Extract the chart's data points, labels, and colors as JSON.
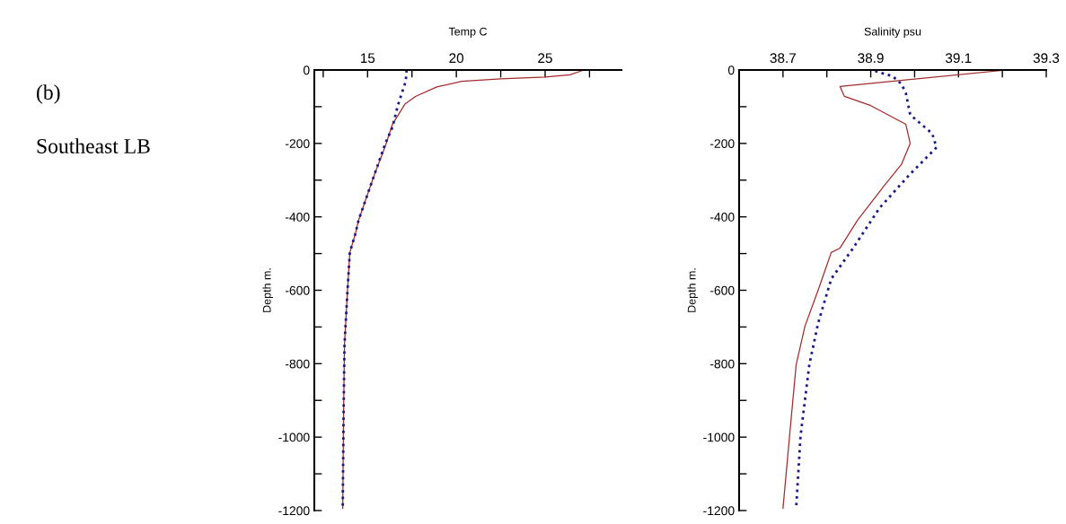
{
  "chart_data": [
    {
      "type": "line",
      "xlabel": "Temp C",
      "ylabel": "Depth m.",
      "annotations": [
        "(b)",
        "Southeast LB"
      ],
      "xlim": [
        12,
        29.3
      ],
      "ylim": [
        -1200,
        0
      ],
      "xticks": [
        {
          "value": 12.5,
          "label": null
        },
        15,
        {
          "value": 17.5,
          "label": null
        },
        20,
        {
          "value": 22.5,
          "label": null
        },
        25,
        {
          "value": 27.5,
          "label": null
        }
      ],
      "yticks": [
        0,
        {
          "value": -100,
          "label": null
        },
        -200,
        {
          "value": -300,
          "label": null
        },
        -400,
        {
          "value": -500,
          "label": null
        },
        -600,
        {
          "value": -700,
          "label": null
        },
        -800,
        {
          "value": -900,
          "label": null
        },
        -1000,
        {
          "value": -1100,
          "label": null
        },
        -1200
      ],
      "grid": false,
      "series": [
        {
          "color": "#a52a2a",
          "line_style": "solid",
          "x": [
            27.2,
            27.0,
            26.4,
            25.0,
            22.5,
            20.3,
            18.9,
            17.7,
            17.1,
            16.4,
            16.0,
            15.4,
            14.5,
            14.3,
            14.0,
            13.87,
            13.7,
            13.65,
            13.6
          ],
          "values": [
            0,
            -3,
            -13,
            -19,
            -24,
            -31,
            -46,
            -72,
            -93,
            -148,
            -207,
            -283,
            -408,
            -448,
            -497,
            -600,
            -747,
            -932,
            -1194
          ]
        },
        {
          "color": "#1a1a8a",
          "line_style": "dotted",
          "x": [
            17.2,
            17.15,
            16.7,
            16.4,
            16.0,
            15.4,
            14.5,
            14.3,
            14.0,
            13.87,
            13.7,
            13.65,
            13.6
          ],
          "values": [
            0,
            -30,
            -97,
            -156,
            -200,
            -283,
            -408,
            -448,
            -497,
            -600,
            -747,
            -932,
            -1194
          ]
        }
      ]
    },
    {
      "type": "line",
      "xlabel": "Salinity psu",
      "ylabel": "Depth m.",
      "xlim": [
        38.6,
        39.3
      ],
      "ylim": [
        -1200,
        0
      ],
      "xticks": [
        38.7,
        {
          "value": 38.8,
          "label": null
        },
        38.9,
        {
          "value": 39.0,
          "label": null
        },
        39.1,
        {
          "value": 39.2,
          "label": null
        },
        39.3
      ],
      "yticks": [
        0,
        {
          "value": -100,
          "label": null
        },
        -200,
        {
          "value": -300,
          "label": null
        },
        -400,
        {
          "value": -500,
          "label": null
        },
        -600,
        {
          "value": -700,
          "label": null
        },
        -800,
        {
          "value": -900,
          "label": null
        },
        -1000,
        {
          "value": -1100,
          "label": null
        },
        -1200
      ],
      "grid": false,
      "series": [
        {
          "color": "#a52a2a",
          "line_style": "solid",
          "x": [
            39.21,
            38.83,
            38.84,
            38.9,
            38.98,
            38.99,
            38.97,
            38.93,
            38.87,
            38.83,
            38.81,
            38.78,
            38.75,
            38.73,
            38.72,
            38.7
          ],
          "values": [
            0,
            -45,
            -72,
            -97,
            -148,
            -200,
            -257,
            -316,
            -409,
            -485,
            -497,
            -600,
            -698,
            -803,
            -932,
            -1194
          ]
        },
        {
          "color": "#1a1a8a",
          "line_style": "dotted",
          "x": [
            38.91,
            38.95,
            38.97,
            38.98,
            38.99,
            39.04,
            39.05,
            38.99,
            38.92,
            38.86,
            38.81,
            38.78,
            38.76,
            38.74,
            38.73
          ],
          "values": [
            -3,
            -17,
            -38,
            -63,
            -122,
            -173,
            -211,
            -283,
            -376,
            -485,
            -569,
            -690,
            -803,
            -997,
            -1194
          ]
        }
      ]
    }
  ]
}
